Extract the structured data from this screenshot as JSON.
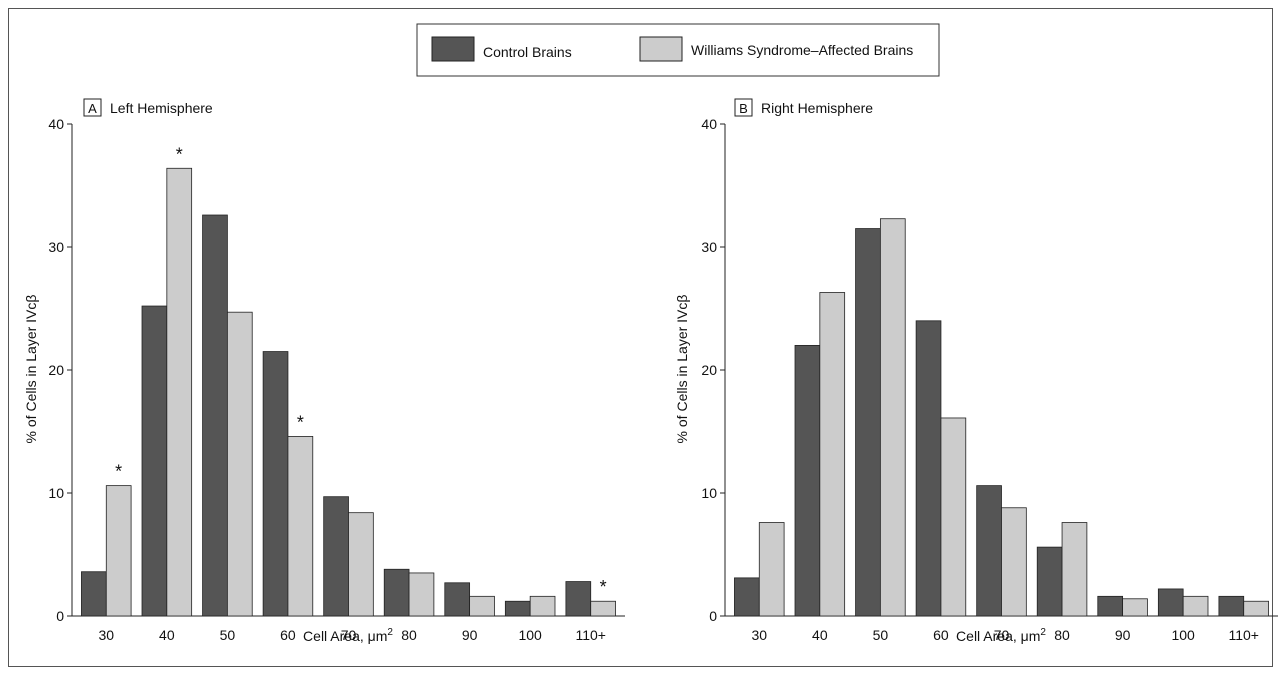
{
  "legend": {
    "items": [
      {
        "label": "Control Brains",
        "color": "#555555"
      },
      {
        "label": "Williams Syndrome–Affected Brains",
        "color": "#cccccc"
      }
    ],
    "placement": "top-center"
  },
  "colors": {
    "control": "#555555",
    "williams": "#cccccc",
    "text": "#111111"
  },
  "chart_data": [
    {
      "type": "bar",
      "panel_letter": "A",
      "title": "Left Hemisphere",
      "xlabel": "Cell Area, μm",
      "xlabel_superscript": "2",
      "ylabel": "% of Cells in Layer IVcβ",
      "ylim": [
        0,
        40
      ],
      "yticks": [
        0,
        10,
        20,
        30,
        40
      ],
      "grid": false,
      "categories": [
        "30",
        "40",
        "50",
        "60",
        "70",
        "80",
        "90",
        "100",
        "110+"
      ],
      "series": [
        {
          "name": "Control Brains",
          "values": [
            3.6,
            25.2,
            32.6,
            21.5,
            9.7,
            3.8,
            2.7,
            1.2,
            2.8
          ]
        },
        {
          "name": "Williams Syndrome–Affected Brains",
          "values": [
            10.6,
            36.4,
            24.7,
            14.6,
            8.4,
            3.5,
            1.6,
            1.6,
            1.2
          ]
        }
      ],
      "annotations": [
        {
          "category": "30",
          "series": 1,
          "text": "*"
        },
        {
          "category": "40",
          "series": 1,
          "text": "*"
        },
        {
          "category": "60",
          "series": 1,
          "text": "*"
        },
        {
          "category": "110+",
          "series": 1,
          "text": "*"
        }
      ]
    },
    {
      "type": "bar",
      "panel_letter": "B",
      "title": "Right Hemisphere",
      "xlabel": "Cell Area, μm",
      "xlabel_superscript": "2",
      "ylabel": "% of Cells in Layer IVcβ",
      "ylim": [
        0,
        40
      ],
      "yticks": [
        0,
        10,
        20,
        30,
        40
      ],
      "grid": false,
      "categories": [
        "30",
        "40",
        "50",
        "60",
        "70",
        "80",
        "90",
        "100",
        "110+"
      ],
      "series": [
        {
          "name": "Control Brains",
          "values": [
            3.1,
            22.0,
            31.5,
            24.0,
            10.6,
            5.6,
            1.6,
            2.2,
            1.6
          ]
        },
        {
          "name": "Williams Syndrome–Affected Brains",
          "values": [
            7.6,
            26.3,
            32.3,
            16.1,
            8.8,
            7.6,
            1.4,
            1.6,
            1.2
          ]
        }
      ],
      "annotations": []
    }
  ]
}
